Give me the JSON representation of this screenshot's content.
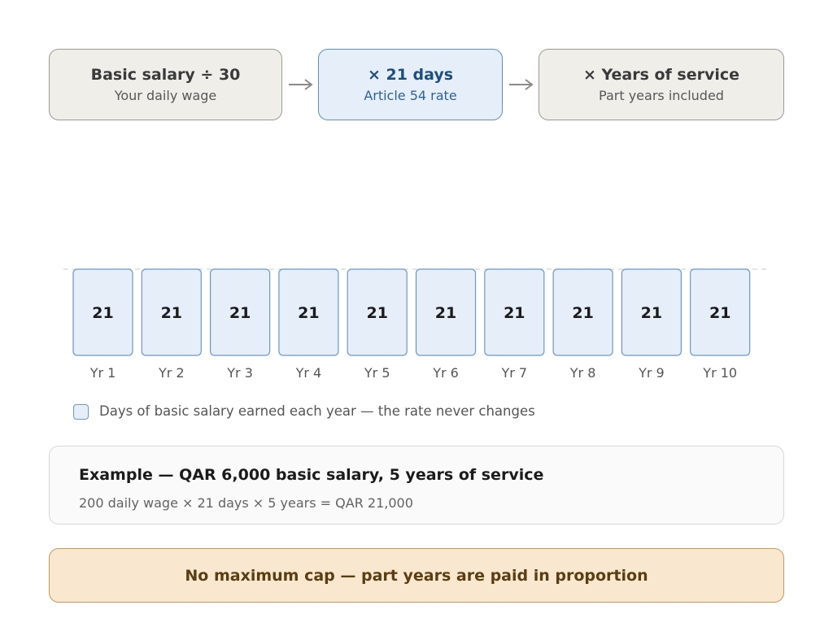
{
  "formula": {
    "step1": {
      "title": "Basic salary ÷ 30",
      "subtitle": "Your daily wage"
    },
    "step2": {
      "title": "× 21 days",
      "subtitle": "Article 54 rate"
    },
    "step3": {
      "title": "× Years of service",
      "subtitle": "Part years included"
    }
  },
  "chart_data": {
    "type": "bar",
    "categories": [
      "Yr 1",
      "Yr 2",
      "Yr 3",
      "Yr 4",
      "Yr 5",
      "Yr 6",
      "Yr 7",
      "Yr 8",
      "Yr 9",
      "Yr 10"
    ],
    "values": [
      21,
      21,
      21,
      21,
      21,
      21,
      21,
      21,
      21,
      21
    ],
    "ylim": [
      0,
      21
    ],
    "fill": "#e6eef9",
    "stroke": "#6b98cc",
    "reference_line": 21
  },
  "legend": {
    "label": "Days of basic salary earned each year — the rate never changes"
  },
  "example": {
    "title": "Example — QAR 6,000 basic salary, 5 years of service",
    "formula": "200 daily wage × 21 days × 5 years = QAR 21,000"
  },
  "note": {
    "text": "No maximum cap — part years are paid in proportion"
  },
  "colors": {
    "gray_box": "#efeee9",
    "blue_box": "#e6eef9",
    "accent_blue": "#1e4d80",
    "note_bg": "#f9e7cf",
    "note_text": "#5a3e12"
  },
  "icons": {
    "flow_arrow": "arrow-right-icon"
  }
}
